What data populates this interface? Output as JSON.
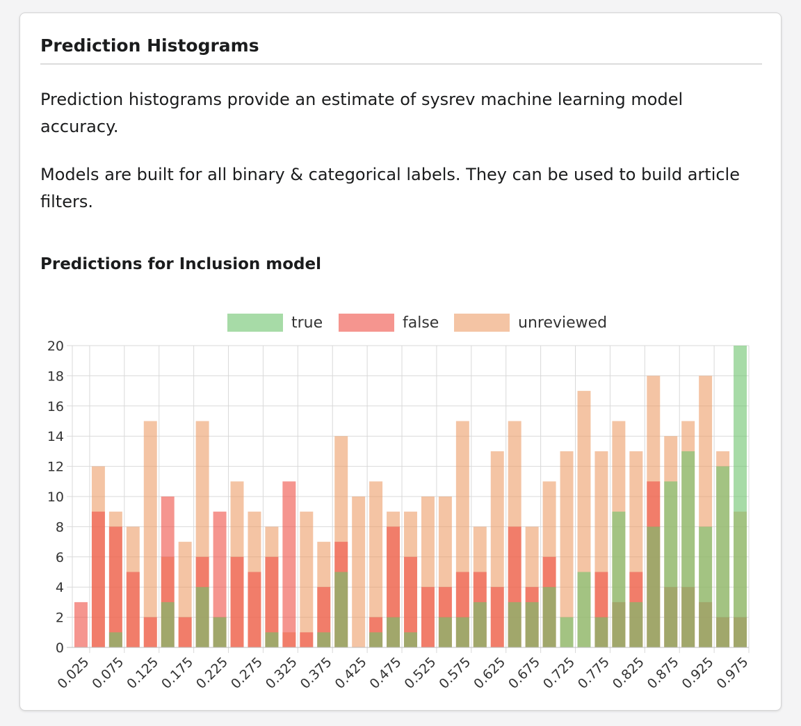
{
  "section": {
    "title": "Prediction Histograms",
    "paragraphs": [
      "Prediction histograms provide an estimate of sysrev machine learning model accuracy.",
      "Models are built for all binary & categorical labels. They can be used to build article filters."
    ]
  },
  "colors": {
    "true": "#6cc36c",
    "false": "#ef4f45",
    "unreviewed": "#ec9c68",
    "overlap": "#8d9952"
  },
  "chart_data": {
    "title": "Predictions for Inclusion model",
    "type": "bar",
    "overlaid": true,
    "categories": [
      "0.025",
      "0.050",
      "0.075",
      "0.100",
      "0.125",
      "0.150",
      "0.175",
      "0.200",
      "0.225",
      "0.250",
      "0.275",
      "0.300",
      "0.325",
      "0.350",
      "0.375",
      "0.400",
      "0.425",
      "0.450",
      "0.475",
      "0.500",
      "0.525",
      "0.550",
      "0.575",
      "0.600",
      "0.625",
      "0.650",
      "0.675",
      "0.700",
      "0.725",
      "0.750",
      "0.775",
      "0.800",
      "0.825",
      "0.850",
      "0.875",
      "0.900",
      "0.925",
      "0.950",
      "0.975"
    ],
    "x_tick_labels": [
      "0.025",
      "0.075",
      "0.125",
      "0.175",
      "0.225",
      "0.275",
      "0.325",
      "0.375",
      "0.425",
      "0.475",
      "0.525",
      "0.575",
      "0.625",
      "0.675",
      "0.725",
      "0.775",
      "0.825",
      "0.875",
      "0.925",
      "0.975"
    ],
    "series": [
      {
        "name": "true",
        "values": [
          0,
          0,
          1,
          0,
          0,
          3,
          0,
          4,
          2,
          0,
          0,
          1,
          0,
          0,
          1,
          5,
          0,
          1,
          2,
          1,
          0,
          2,
          2,
          3,
          0,
          3,
          3,
          4,
          2,
          5,
          2,
          9,
          3,
          8,
          11,
          13,
          8,
          12,
          20
        ]
      },
      {
        "name": "false",
        "values": [
          3,
          9,
          8,
          5,
          2,
          10,
          2,
          6,
          9,
          6,
          5,
          6,
          11,
          1,
          4,
          7,
          0,
          2,
          8,
          6,
          4,
          4,
          5,
          5,
          4,
          8,
          4,
          6,
          0,
          0,
          5,
          3,
          5,
          11,
          4,
          4,
          3,
          2,
          2
        ]
      },
      {
        "name": "unreviewed",
        "values": [
          0,
          12,
          9,
          8,
          15,
          6,
          7,
          15,
          2,
          11,
          9,
          8,
          1,
          9,
          7,
          14,
          10,
          11,
          9,
          9,
          10,
          10,
          15,
          8,
          13,
          15,
          8,
          11,
          13,
          17,
          13,
          15,
          13,
          18,
          14,
          15,
          18,
          13,
          9
        ]
      }
    ],
    "y_ticks": [
      "0",
      "2",
      "4",
      "6",
      "8",
      "10",
      "12",
      "14",
      "16",
      "18",
      "20"
    ],
    "ylim": [
      0,
      20
    ],
    "grid": true,
    "legend_position": "top"
  }
}
